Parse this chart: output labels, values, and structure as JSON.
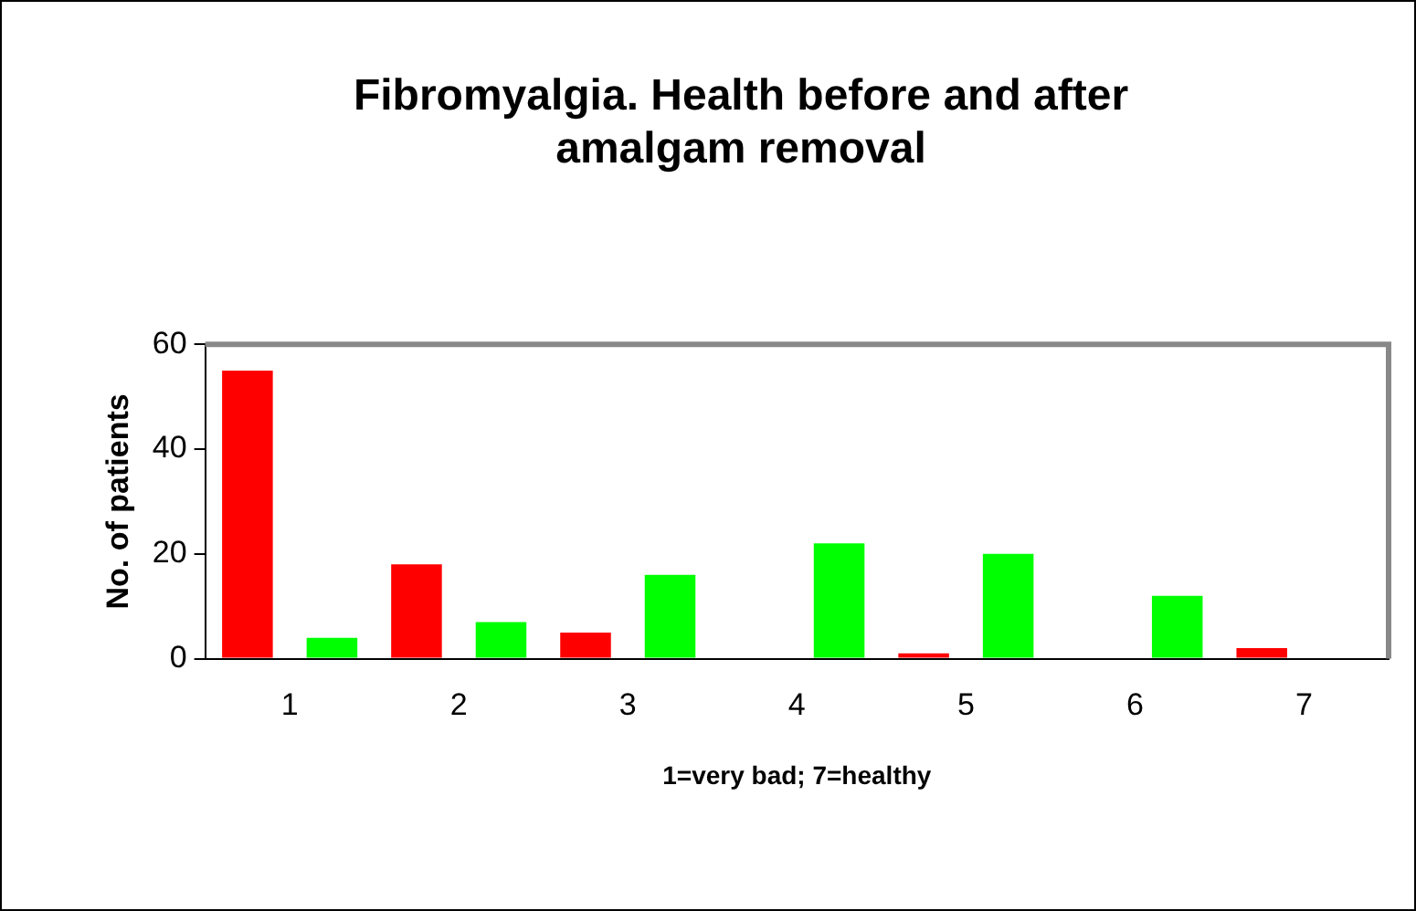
{
  "chart_data": {
    "type": "bar",
    "title": "Fibromyalgia. Health before and after amalgam removal",
    "xlabel": "1=very bad; 7=healthy",
    "ylabel": "No. of patients",
    "categories": [
      "1",
      "2",
      "3",
      "4",
      "5",
      "6",
      "7"
    ],
    "series": [
      {
        "color": "#ff0000",
        "values": [
          55,
          18,
          5,
          0,
          1,
          0,
          2
        ]
      },
      {
        "color": "#00ff00",
        "values": [
          4,
          7,
          16,
          22,
          20,
          12,
          0
        ]
      }
    ],
    "ylim": [
      0,
      60
    ],
    "yticks": [
      0,
      20,
      40,
      60
    ],
    "grid": false,
    "legend": false
  }
}
